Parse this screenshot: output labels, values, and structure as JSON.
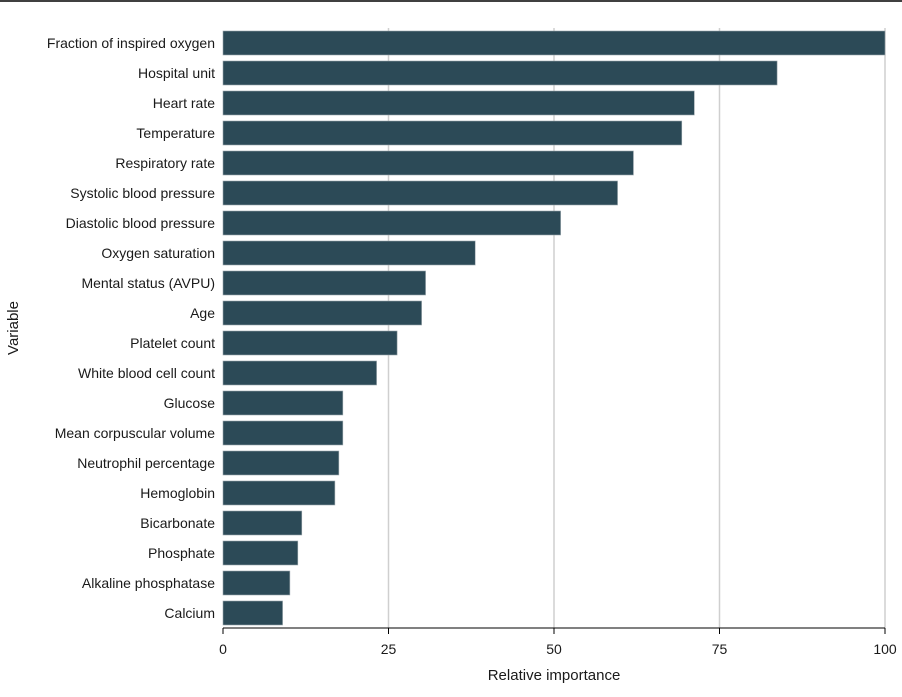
{
  "chart_data": {
    "type": "bar",
    "orientation": "horizontal",
    "xlabel": "Relative importance",
    "ylabel": "Variable",
    "xlim": [
      0,
      100
    ],
    "xticks": [
      0,
      25,
      50,
      75,
      100
    ],
    "grid": "vertical",
    "bar_color": "#2c4a57",
    "categories": [
      "Fraction of inspired oxygen",
      "Hospital unit",
      "Heart rate",
      "Temperature",
      "Respiratory rate",
      "Systolic blood pressure",
      "Diastolic blood pressure",
      "Oxygen saturation",
      "Mental status (AVPU)",
      "Age",
      "Platelet count",
      "White blood cell count",
      "Glucose",
      "Mean corpuscular volume",
      "Neutrophil percentage",
      "Hemoglobin",
      "Bicarbonate",
      "Phosphate",
      "Alkaline phosphatase",
      "Calcium"
    ],
    "values": [
      100,
      83.7,
      71.2,
      69.3,
      62.0,
      59.6,
      51.0,
      38.1,
      30.6,
      30.0,
      26.3,
      23.2,
      18.1,
      18.1,
      17.5,
      16.9,
      11.9,
      11.3,
      10.1,
      9.0
    ]
  }
}
